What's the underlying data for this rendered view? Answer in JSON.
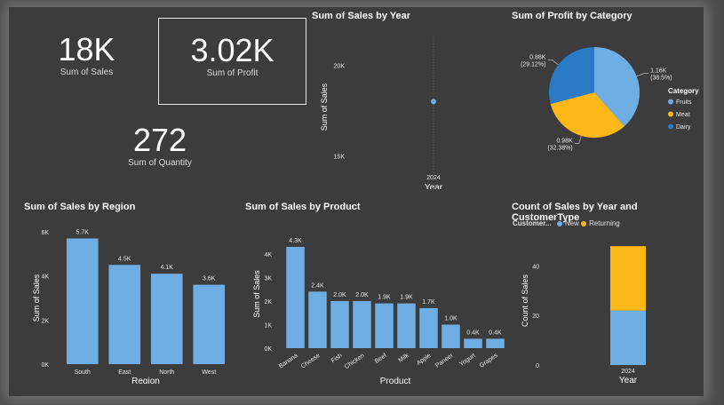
{
  "kpis": {
    "sales": {
      "value": "18K",
      "label": "Sum of Sales"
    },
    "profit": {
      "value": "3.02K",
      "label": "Sum of Profit"
    },
    "quantity": {
      "value": "272",
      "label": "Sum of Quantity"
    }
  },
  "colors": {
    "blue": "#6eaee4",
    "orange": "#fbb817",
    "darkblue": "#2b7ac6",
    "background": "#3c3c3c"
  },
  "chart_data": [
    {
      "id": "sales_by_year",
      "type": "scatter",
      "title": "Sum of Sales by Year",
      "xlabel": "Year",
      "ylabel": "Sum of Sales",
      "yticks": [
        "20K",
        "15K"
      ],
      "ylim": [
        13900,
        21500
      ],
      "categories": [
        "2024"
      ],
      "values": [
        18000
      ]
    },
    {
      "id": "profit_by_category",
      "type": "pie",
      "title": "Sum of Profit by Category",
      "legend_title": "Category",
      "legend_position": "right",
      "slices": [
        {
          "name": "Fruits",
          "value": 1.16,
          "label": "1.16K",
          "pct": "(38.5%)",
          "color": "#6eaee4"
        },
        {
          "name": "Meat",
          "value": 0.98,
          "label": "0.98K",
          "pct": "(32.38%)",
          "color": "#fbb817"
        },
        {
          "name": "Dairy",
          "value": 0.88,
          "label": "0.88K",
          "pct": "(29.12%)",
          "color": "#2b7ac6"
        }
      ]
    },
    {
      "id": "sales_by_region",
      "type": "bar",
      "title": "Sum of Sales by Region",
      "xlabel": "Region",
      "ylabel": "Sum of Sales",
      "ylim": [
        0,
        6000
      ],
      "yticks": [
        {
          "v": 0,
          "t": "0K"
        },
        {
          "v": 2000,
          "t": "2K"
        },
        {
          "v": 4000,
          "t": "4K"
        },
        {
          "v": 6000,
          "t": "6K"
        }
      ],
      "categories": [
        "South",
        "East",
        "North",
        "West"
      ],
      "values": [
        5700,
        4500,
        4100,
        3600
      ],
      "labels": [
        "5.7K",
        "4.5K",
        "4.1K",
        "3.6K"
      ]
    },
    {
      "id": "sales_by_product",
      "type": "bar",
      "title": "Sum of Sales by Product",
      "xlabel": "Product",
      "ylabel": "Sum of Sales",
      "ylim": [
        0,
        4600
      ],
      "yticks": [
        {
          "v": 0,
          "t": "0K"
        },
        {
          "v": 1000,
          "t": "1K"
        },
        {
          "v": 2000,
          "t": "2K"
        },
        {
          "v": 3000,
          "t": "3K"
        },
        {
          "v": 4000,
          "t": "4K"
        }
      ],
      "categories": [
        "Banana",
        "Cheese",
        "Fish",
        "Chicken",
        "Beef",
        "Milk",
        "Apple",
        "Paneer",
        "Yogurt",
        "Grapes"
      ],
      "values": [
        4300,
        2400,
        2000,
        2000,
        1900,
        1900,
        1700,
        1000,
        400,
        400
      ],
      "labels": [
        "4.3K",
        "2.4K",
        "2.0K",
        "2.0K",
        "1.9K",
        "1.9K",
        "1.7K",
        "1.0K",
        "0.4K",
        "0.4K"
      ]
    },
    {
      "id": "count_by_year_customer",
      "type": "bar",
      "title": "Count of Sales by Year and CustomerType",
      "xlabel": "Year",
      "ylabel": "Count of Sales",
      "legend_title": "Customer...",
      "legend_position": "top-left",
      "ylim": [
        0,
        52
      ],
      "yticks": [
        {
          "v": 0,
          "t": "0"
        },
        {
          "v": 20,
          "t": "20"
        },
        {
          "v": 40,
          "t": "40"
        }
      ],
      "categories": [
        "2024"
      ],
      "series": [
        {
          "name": "New",
          "values": [
            22
          ],
          "color": "#6eaee4"
        },
        {
          "name": "Returning",
          "values": [
            26
          ],
          "color": "#fbb817"
        }
      ]
    }
  ]
}
